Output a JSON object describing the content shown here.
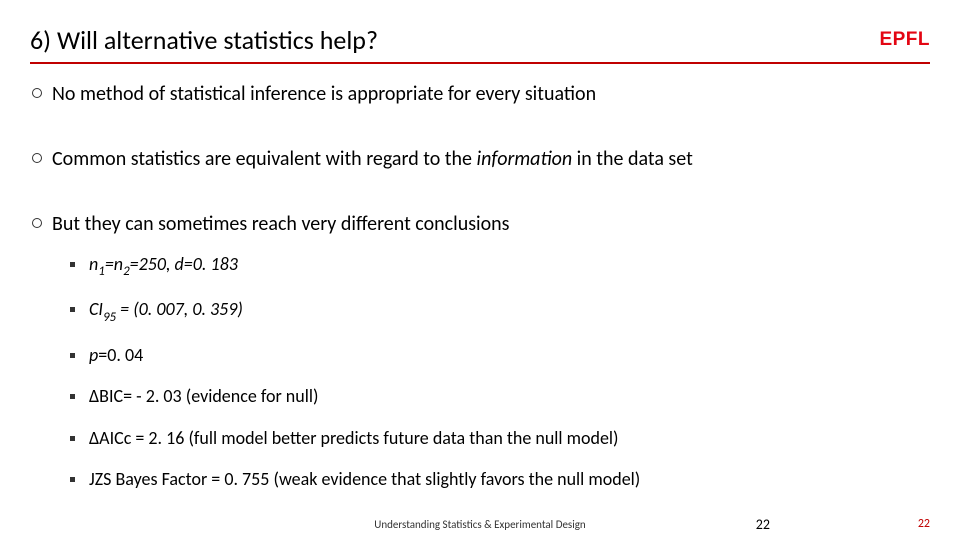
{
  "title": "6) Will alternative statistics help?",
  "logo": "EPFL",
  "colors": {
    "accent": "#c00000",
    "logo": "#e30613",
    "text": "#000000"
  },
  "bullets": {
    "b1": "No method of statistical inference is appropriate for every situation",
    "b2_pre": "Common statistics are equivalent with regard to the ",
    "b2_em": "information",
    "b2_post": " in the data set",
    "b3": "But they can sometimes reach very different conclusions"
  },
  "sub": {
    "s1_a": "n",
    "s1_a_sub": "1",
    "s1_b": "=n",
    "s1_b_sub": "2",
    "s1_c": "=250, d=0. 183",
    "s2_a": "CI",
    "s2_a_sub": "95",
    "s2_b": " = (0. 007, 0. 359)",
    "s3_a": "p",
    "s3_b": "=0. 04",
    "s4": "ΔBIC= - 2. 03 (evidence for null)",
    "s5": "ΔAICc = 2. 16 (full model better predicts future data than the null model)",
    "s6": "JZS Bayes Factor = 0. 755 (weak evidence that slightly favors the null model)"
  },
  "footer": {
    "center": "Understanding Statistics & Experimental Design",
    "page_a": "22",
    "page_b": "22"
  }
}
